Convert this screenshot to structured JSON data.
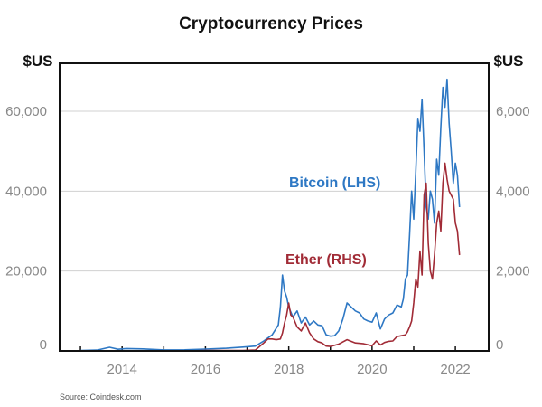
{
  "chart_data": {
    "type": "line",
    "title": "Cryptocurrency Prices",
    "left_unit": "$US",
    "right_unit": "$US",
    "source": "Source: Coindesk.com",
    "xlim": [
      2012.5,
      2022.8
    ],
    "x_ticks": [
      2014,
      2016,
      2018,
      2020,
      2022
    ],
    "x_tick_labels": [
      "2014",
      "2016",
      "2018",
      "2020",
      "2022"
    ],
    "y_left": {
      "lim": [
        0,
        72000
      ],
      "ticks": [
        0,
        20000,
        40000,
        60000
      ],
      "tick_labels": [
        "0",
        "20,000",
        "40,000",
        "60,000"
      ]
    },
    "y_right": {
      "lim": [
        0,
        7200
      ],
      "ticks": [
        0,
        2000,
        4000,
        6000
      ],
      "tick_labels": [
        "0",
        "2,000",
        "4,000",
        "6,000"
      ]
    },
    "series": [
      {
        "name": "Bitcoin (LHS)",
        "axis": "left",
        "color": "#2e78c4",
        "x": [
          2013.0,
          2013.4,
          2013.7,
          2013.9,
          2014.1,
          2014.5,
          2015.0,
          2015.5,
          2016.0,
          2016.5,
          2016.9,
          2017.2,
          2017.4,
          2017.6,
          2017.75,
          2017.8,
          2017.85,
          2017.9,
          2017.95,
          2018.0,
          2018.1,
          2018.2,
          2018.3,
          2018.4,
          2018.5,
          2018.6,
          2018.7,
          2018.8,
          2018.9,
          2019.0,
          2019.1,
          2019.2,
          2019.3,
          2019.4,
          2019.5,
          2019.6,
          2019.7,
          2019.8,
          2019.9,
          2020.0,
          2020.1,
          2020.2,
          2020.3,
          2020.4,
          2020.5,
          2020.6,
          2020.7,
          2020.75,
          2020.8,
          2020.85,
          2020.9,
          2020.95,
          2021.0,
          2021.05,
          2021.1,
          2021.15,
          2021.2,
          2021.25,
          2021.3,
          2021.35,
          2021.4,
          2021.45,
          2021.5,
          2021.55,
          2021.6,
          2021.65,
          2021.7,
          2021.75,
          2021.8,
          2021.85,
          2021.9,
          2021.95,
          2022.0,
          2022.05,
          2022.1
        ],
        "y": [
          100,
          200,
          900,
          400,
          600,
          500,
          250,
          280,
          420,
          650,
          950,
          1200,
          2500,
          4000,
          6500,
          11000,
          19000,
          15000,
          13500,
          11000,
          8500,
          10000,
          7000,
          8500,
          6500,
          7500,
          6500,
          6300,
          4000,
          3700,
          3800,
          5000,
          8000,
          12000,
          11000,
          10000,
          9500,
          8000,
          7500,
          7200,
          9500,
          5500,
          8000,
          9000,
          9500,
          11500,
          11000,
          13000,
          18000,
          19000,
          29000,
          40000,
          33000,
          45000,
          58000,
          55000,
          63000,
          50000,
          36000,
          33000,
          40000,
          38000,
          32000,
          48000,
          44000,
          56000,
          66000,
          61000,
          68000,
          57000,
          50000,
          42000,
          47000,
          44000,
          36000
        ]
      },
      {
        "name": "Ether (RHS)",
        "axis": "right",
        "color": "#a12b36",
        "x": [
          2015.6,
          2016.0,
          2016.5,
          2016.9,
          2017.2,
          2017.4,
          2017.5,
          2017.6,
          2017.7,
          2017.8,
          2017.85,
          2017.9,
          2017.95,
          2018.0,
          2018.05,
          2018.1,
          2018.2,
          2018.3,
          2018.4,
          2018.5,
          2018.6,
          2018.7,
          2018.8,
          2018.9,
          2019.0,
          2019.2,
          2019.4,
          2019.6,
          2019.8,
          2020.0,
          2020.1,
          2020.2,
          2020.3,
          2020.4,
          2020.5,
          2020.6,
          2020.7,
          2020.8,
          2020.85,
          2020.9,
          2020.95,
          2021.0,
          2021.05,
          2021.1,
          2021.15,
          2021.2,
          2021.25,
          2021.3,
          2021.35,
          2021.4,
          2021.45,
          2021.5,
          2021.55,
          2021.6,
          2021.65,
          2021.7,
          2021.75,
          2021.8,
          2021.85,
          2021.9,
          2021.95,
          2022.0,
          2022.05,
          2022.1
        ],
        "y": [
          1,
          10,
          12,
          8,
          20,
          200,
          300,
          300,
          280,
          300,
          450,
          700,
          900,
          1200,
          900,
          850,
          600,
          500,
          700,
          450,
          300,
          230,
          200,
          120,
          110,
          170,
          280,
          200,
          180,
          130,
          250,
          150,
          210,
          240,
          250,
          360,
          380,
          400,
          480,
          600,
          750,
          1200,
          1800,
          1600,
          2500,
          1900,
          3900,
          4200,
          2700,
          2000,
          1800,
          2400,
          3200,
          3500,
          3000,
          4200,
          4700,
          4300,
          4000,
          3900,
          3800,
          3200,
          3000,
          2400
        ]
      }
    ]
  }
}
